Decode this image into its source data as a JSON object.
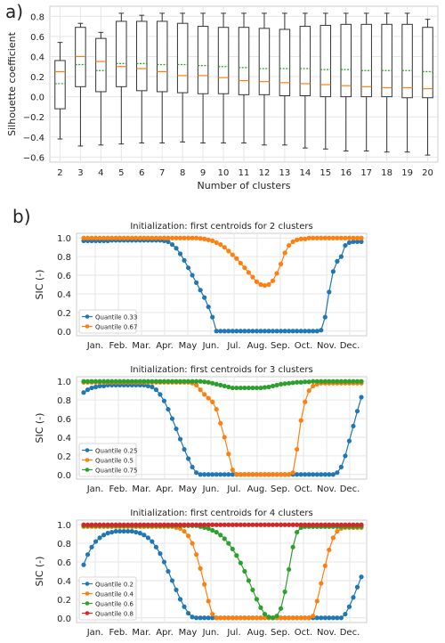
{
  "panel_labels": {
    "a": "a)",
    "b": "b)"
  },
  "chart_data": [
    {
      "type": "box",
      "xlabel": "Number of clusters",
      "ylabel": "Silhouette coefficient",
      "ylim": [
        -0.65,
        0.9
      ],
      "yticks": [
        -0.6,
        -0.4,
        -0.2,
        0.0,
        0.2,
        0.4,
        0.6,
        0.8
      ],
      "grid": true,
      "categories": [
        2,
        3,
        4,
        5,
        6,
        7,
        8,
        9,
        10,
        11,
        12,
        13,
        14,
        15,
        16,
        17,
        18,
        19,
        20
      ],
      "boxes": [
        {
          "k": 2,
          "min": -0.42,
          "q1": -0.12,
          "median": 0.25,
          "mean": 0.13,
          "q3": 0.36,
          "max": 0.54
        },
        {
          "k": 3,
          "min": -0.49,
          "q1": 0.1,
          "median": 0.4,
          "mean": 0.32,
          "q3": 0.69,
          "max": 0.73
        },
        {
          "k": 4,
          "min": -0.48,
          "q1": 0.05,
          "median": 0.35,
          "mean": 0.26,
          "q3": 0.58,
          "max": 0.64
        },
        {
          "k": 5,
          "min": -0.47,
          "q1": 0.1,
          "median": 0.3,
          "mean": 0.33,
          "q3": 0.75,
          "max": 0.83
        },
        {
          "k": 6,
          "min": -0.46,
          "q1": 0.06,
          "median": 0.28,
          "mean": 0.33,
          "q3": 0.75,
          "max": 0.81
        },
        {
          "k": 7,
          "min": -0.46,
          "q1": 0.05,
          "median": 0.25,
          "mean": 0.32,
          "q3": 0.75,
          "max": 0.83
        },
        {
          "k": 8,
          "min": -0.45,
          "q1": 0.04,
          "median": 0.21,
          "mean": 0.32,
          "q3": 0.73,
          "max": 0.83
        },
        {
          "k": 9,
          "min": -0.46,
          "q1": 0.03,
          "median": 0.21,
          "mean": 0.31,
          "q3": 0.7,
          "max": 0.83
        },
        {
          "k": 10,
          "min": -0.46,
          "q1": 0.03,
          "median": 0.19,
          "mean": 0.3,
          "q3": 0.69,
          "max": 0.83
        },
        {
          "k": 11,
          "min": -0.46,
          "q1": 0.02,
          "median": 0.16,
          "mean": 0.29,
          "q3": 0.69,
          "max": 0.83
        },
        {
          "k": 12,
          "min": -0.48,
          "q1": 0.02,
          "median": 0.15,
          "mean": 0.28,
          "q3": 0.68,
          "max": 0.83
        },
        {
          "k": 13,
          "min": -0.48,
          "q1": 0.01,
          "median": 0.14,
          "mean": 0.28,
          "q3": 0.67,
          "max": 0.83
        },
        {
          "k": 14,
          "min": -0.51,
          "q1": 0.01,
          "median": 0.13,
          "mean": 0.28,
          "q3": 0.7,
          "max": 0.83
        },
        {
          "k": 15,
          "min": -0.52,
          "q1": 0.0,
          "median": 0.12,
          "mean": 0.27,
          "q3": 0.71,
          "max": 0.83
        },
        {
          "k": 16,
          "min": -0.54,
          "q1": 0.0,
          "median": 0.11,
          "mean": 0.27,
          "q3": 0.72,
          "max": 0.83
        },
        {
          "k": 17,
          "min": -0.54,
          "q1": 0.0,
          "median": 0.1,
          "mean": 0.26,
          "q3": 0.72,
          "max": 0.83
        },
        {
          "k": 18,
          "min": -0.55,
          "q1": 0.0,
          "median": 0.09,
          "mean": 0.26,
          "q3": 0.72,
          "max": 0.83
        },
        {
          "k": 19,
          "min": -0.55,
          "q1": -0.01,
          "median": 0.09,
          "mean": 0.26,
          "q3": 0.72,
          "max": 0.83
        },
        {
          "k": 20,
          "min": -0.58,
          "q1": -0.01,
          "median": 0.08,
          "mean": 0.25,
          "q3": 0.69,
          "max": 0.77
        }
      ],
      "colors": {
        "median": "#ff7f0e",
        "mean": "#2ca02c",
        "box": "#333333"
      }
    },
    {
      "type": "line",
      "title": "Initialization: first centroids for 2 clusters",
      "ylabel": "SIC (-)",
      "ylim": [
        -0.05,
        1.05
      ],
      "yticks": [
        0.0,
        0.2,
        0.4,
        0.6,
        0.8,
        1.0
      ],
      "x_ticklabels": [
        "Jan.",
        "Feb.",
        "Mar.",
        "Apr.",
        "May",
        "Jun.",
        "Jul.",
        "Aug.",
        "Sep.",
        "Oct.",
        "Nov.",
        "Dec."
      ],
      "legend_position": "lower-left",
      "series": [
        {
          "name": "Quantile 0.33",
          "color": "#1f77b4",
          "values": [
            0.97,
            0.97,
            0.97,
            0.97,
            0.97,
            0.97,
            0.97,
            0.975,
            0.975,
            0.975,
            0.975,
            0.975,
            0.975,
            0.975,
            0.975,
            0.975,
            0.975,
            0.975,
            0.975,
            0.975,
            0.97,
            0.96,
            0.93,
            0.89,
            0.83,
            0.76,
            0.68,
            0.6,
            0.52,
            0.44,
            0.36,
            0.26,
            0.15,
            0.0,
            0.0,
            0.0,
            0.0,
            0.0,
            0.0,
            0.0,
            0.0,
            0.0,
            0.0,
            0.0,
            0.0,
            0.0,
            0.0,
            0.0,
            0.0,
            0.0,
            0.0,
            0.0,
            0.0,
            0.0,
            0.0,
            0.0,
            0.0,
            0.0,
            0.0,
            0.01,
            0.15,
            0.42,
            0.64,
            0.75,
            0.8,
            0.92,
            0.95,
            0.96,
            0.96,
            0.96
          ]
        },
        {
          "name": "Quantile 0.67",
          "color": "#ff7f0e",
          "values": [
            1.0,
            1.0,
            1.0,
            1.0,
            1.0,
            1.0,
            1.0,
            1.0,
            1.0,
            1.0,
            1.0,
            1.0,
            1.0,
            1.0,
            1.0,
            1.0,
            1.0,
            1.0,
            1.0,
            1.0,
            1.0,
            1.0,
            1.0,
            1.0,
            1.0,
            1.0,
            1.0,
            1.0,
            1.0,
            0.995,
            0.99,
            0.98,
            0.97,
            0.95,
            0.93,
            0.9,
            0.86,
            0.82,
            0.78,
            0.73,
            0.68,
            0.63,
            0.58,
            0.53,
            0.5,
            0.49,
            0.5,
            0.54,
            0.62,
            0.72,
            0.84,
            0.92,
            0.96,
            0.98,
            0.99,
            0.99,
            1.0,
            1.0,
            1.0,
            1.0,
            1.0,
            1.0,
            1.0,
            1.0,
            1.0,
            1.0,
            1.0,
            1.0,
            1.0,
            1.0
          ]
        }
      ]
    },
    {
      "type": "line",
      "title": "Initialization: first centroids for 3 clusters",
      "ylabel": "SIC (-)",
      "ylim": [
        -0.05,
        1.05
      ],
      "yticks": [
        0.0,
        0.2,
        0.4,
        0.6,
        0.8,
        1.0
      ],
      "x_ticklabels": [
        "Jan.",
        "Feb.",
        "Mar.",
        "Apr.",
        "May",
        "Jun.",
        "Jul.",
        "Aug.",
        "Sep.",
        "Oct.",
        "Nov.",
        "Dec."
      ],
      "legend_position": "lower-left",
      "series": [
        {
          "name": "Quantile 0.25",
          "color": "#1f77b4",
          "values": [
            0.88,
            0.91,
            0.93,
            0.94,
            0.95,
            0.95,
            0.96,
            0.96,
            0.96,
            0.96,
            0.96,
            0.96,
            0.96,
            0.96,
            0.96,
            0.96,
            0.95,
            0.94,
            0.91,
            0.86,
            0.79,
            0.7,
            0.6,
            0.49,
            0.38,
            0.27,
            0.17,
            0.08,
            0.02,
            0.0,
            0.0,
            0.0,
            0.0,
            0.0,
            0.0,
            0.0,
            0.0,
            0.0,
            0.0,
            0.0,
            0.0,
            0.0,
            0.0,
            0.0,
            0.0,
            0.0,
            0.0,
            0.0,
            0.0,
            0.0,
            0.0,
            0.0,
            0.0,
            0.0,
            0.0,
            0.0,
            0.0,
            0.0,
            0.0,
            0.0,
            0.0,
            0.0,
            0.0,
            0.02,
            0.08,
            0.2,
            0.36,
            0.52,
            0.68,
            0.83
          ]
        },
        {
          "name": "Quantile 0.5",
          "color": "#ff7f0e",
          "values": [
            0.99,
            0.99,
            0.99,
            0.99,
            0.99,
            0.99,
            0.99,
            0.99,
            0.99,
            0.99,
            0.99,
            0.99,
            0.99,
            0.99,
            0.99,
            0.99,
            0.99,
            0.99,
            0.99,
            0.99,
            0.99,
            0.99,
            0.99,
            0.99,
            0.99,
            0.99,
            0.99,
            0.98,
            0.96,
            0.91,
            0.86,
            0.82,
            0.78,
            0.7,
            0.55,
            0.4,
            0.22,
            0.05,
            0.0,
            0.0,
            0.0,
            0.0,
            0.0,
            0.0,
            0.0,
            0.0,
            0.0,
            0.0,
            0.0,
            0.0,
            0.0,
            0.0,
            0.02,
            0.27,
            0.58,
            0.78,
            0.9,
            0.95,
            0.97,
            0.98,
            0.98,
            0.98,
            0.98,
            0.98,
            0.98,
            0.98,
            0.98,
            0.98,
            0.98,
            0.98
          ]
        },
        {
          "name": "Quantile 0.75",
          "color": "#2ca02c",
          "values": [
            1.0,
            1.0,
            1.0,
            1.0,
            1.0,
            1.0,
            1.0,
            1.0,
            1.0,
            1.0,
            1.0,
            1.0,
            1.0,
            1.0,
            1.0,
            1.0,
            1.0,
            1.0,
            1.0,
            1.0,
            1.0,
            1.0,
            1.0,
            1.0,
            1.0,
            1.0,
            1.0,
            1.0,
            1.0,
            1.0,
            0.995,
            0.99,
            0.98,
            0.97,
            0.96,
            0.95,
            0.94,
            0.93,
            0.93,
            0.93,
            0.93,
            0.93,
            0.93,
            0.93,
            0.93,
            0.935,
            0.94,
            0.95,
            0.96,
            0.97,
            0.975,
            0.98,
            0.985,
            0.99,
            0.99,
            0.995,
            0.995,
            1.0,
            1.0,
            1.0,
            1.0,
            1.0,
            1.0,
            1.0,
            1.0,
            1.0,
            1.0,
            1.0,
            1.0,
            1.0
          ]
        }
      ]
    },
    {
      "type": "line",
      "title": "Initialization: first centroids for 4 clusters",
      "ylabel": "SIC (-)",
      "ylim": [
        -0.05,
        1.05
      ],
      "yticks": [
        0.0,
        0.2,
        0.4,
        0.6,
        0.8,
        1.0
      ],
      "x_ticklabels": [
        "Jan.",
        "Feb.",
        "Mar.",
        "Apr.",
        "May",
        "Jun.",
        "Jul.",
        "Aug.",
        "Sep.",
        "Oct.",
        "Nov.",
        "Dec."
      ],
      "legend_position": "lower-left",
      "series": [
        {
          "name": "Quantile 0.2",
          "color": "#1f77b4",
          "values": [
            0.57,
            0.68,
            0.76,
            0.82,
            0.86,
            0.89,
            0.91,
            0.92,
            0.93,
            0.93,
            0.93,
            0.93,
            0.93,
            0.92,
            0.91,
            0.89,
            0.86,
            0.82,
            0.76,
            0.69,
            0.6,
            0.5,
            0.4,
            0.3,
            0.2,
            0.12,
            0.05,
            0.01,
            0.0,
            0.0,
            0.0,
            0.0,
            0.0,
            0.0,
            0.0,
            0.0,
            0.0,
            0.0,
            0.0,
            0.0,
            0.0,
            0.0,
            0.0,
            0.0,
            0.0,
            0.0,
            0.0,
            0.0,
            0.0,
            0.0,
            0.0,
            0.0,
            0.0,
            0.0,
            0.0,
            0.0,
            0.0,
            0.0,
            0.0,
            0.0,
            0.0,
            0.0,
            0.0,
            0.0,
            0.0,
            0.04,
            0.12,
            0.22,
            0.33,
            0.44
          ]
        },
        {
          "name": "Quantile 0.4",
          "color": "#ff7f0e",
          "values": [
            0.98,
            0.98,
            0.98,
            0.98,
            0.98,
            0.98,
            0.98,
            0.98,
            0.98,
            0.98,
            0.98,
            0.98,
            0.98,
            0.98,
            0.98,
            0.98,
            0.98,
            0.98,
            0.98,
            0.98,
            0.98,
            0.98,
            0.98,
            0.97,
            0.96,
            0.93,
            0.88,
            0.8,
            0.68,
            0.53,
            0.36,
            0.18,
            0.04,
            0.0,
            0.0,
            0.0,
            0.0,
            0.0,
            0.0,
            0.0,
            0.0,
            0.0,
            0.0,
            0.0,
            0.0,
            0.0,
            0.0,
            0.0,
            0.0,
            0.0,
            0.0,
            0.0,
            0.0,
            0.0,
            0.0,
            0.0,
            0.0,
            0.02,
            0.18,
            0.37,
            0.56,
            0.73,
            0.86,
            0.93,
            0.96,
            0.97,
            0.97,
            0.97,
            0.97,
            0.97
          ]
        },
        {
          "name": "Quantile 0.6",
          "color": "#2ca02c",
          "values": [
            0.99,
            0.99,
            0.99,
            0.99,
            0.99,
            0.99,
            0.99,
            0.99,
            0.99,
            0.99,
            0.99,
            0.99,
            0.99,
            0.99,
            0.99,
            0.99,
            0.99,
            0.99,
            0.99,
            0.99,
            0.99,
            0.99,
            0.99,
            0.99,
            0.99,
            0.99,
            0.99,
            0.99,
            0.99,
            0.98,
            0.97,
            0.96,
            0.94,
            0.92,
            0.89,
            0.85,
            0.8,
            0.74,
            0.67,
            0.59,
            0.5,
            0.4,
            0.3,
            0.2,
            0.11,
            0.04,
            0.01,
            0.0,
            0.02,
            0.1,
            0.28,
            0.52,
            0.76,
            0.92,
            0.97,
            0.98,
            0.98,
            0.98,
            0.98,
            0.98,
            0.98,
            0.98,
            0.98,
            0.98,
            0.98,
            0.98,
            0.98,
            0.98,
            0.98,
            0.98
          ]
        },
        {
          "name": "Quantile 0.8",
          "color": "#d62728",
          "values": [
            1.0,
            1.0,
            1.0,
            1.0,
            1.0,
            1.0,
            1.0,
            1.0,
            1.0,
            1.0,
            1.0,
            1.0,
            1.0,
            1.0,
            1.0,
            1.0,
            1.0,
            1.0,
            1.0,
            1.0,
            1.0,
            1.0,
            1.0,
            1.0,
            1.0,
            1.0,
            1.0,
            1.0,
            1.0,
            1.0,
            1.0,
            1.0,
            1.0,
            1.0,
            1.0,
            1.0,
            1.0,
            1.0,
            1.0,
            1.0,
            1.0,
            1.0,
            1.0,
            1.0,
            1.0,
            1.0,
            1.0,
            1.0,
            1.0,
            1.0,
            1.0,
            1.0,
            1.0,
            1.0,
            1.0,
            1.0,
            1.0,
            1.0,
            1.0,
            1.0,
            1.0,
            1.0,
            1.0,
            1.0,
            1.0,
            1.0,
            1.0,
            1.0,
            1.0,
            1.0
          ]
        }
      ]
    }
  ]
}
